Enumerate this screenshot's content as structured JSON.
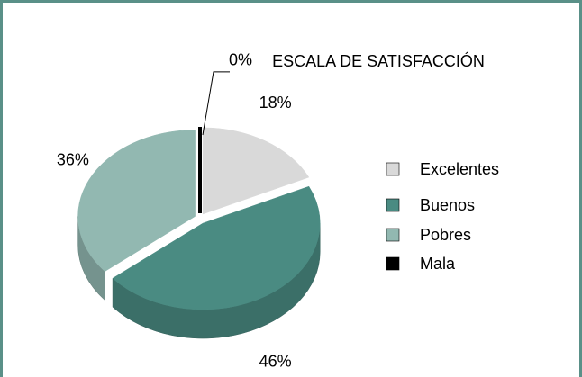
{
  "chart_data": {
    "type": "pie",
    "title": "ESCALA DE SATISFACCIÓN",
    "categories": [
      "Excelentes",
      "Buenos",
      "Pobres",
      "Mala"
    ],
    "values": [
      18,
      46,
      36,
      0
    ],
    "value_labels": [
      "18%",
      "46%",
      "36%",
      "0%"
    ],
    "colors": [
      "#d9d9d9",
      "#4a8b82",
      "#92b8b1",
      "#000000"
    ],
    "legend": "right"
  }
}
